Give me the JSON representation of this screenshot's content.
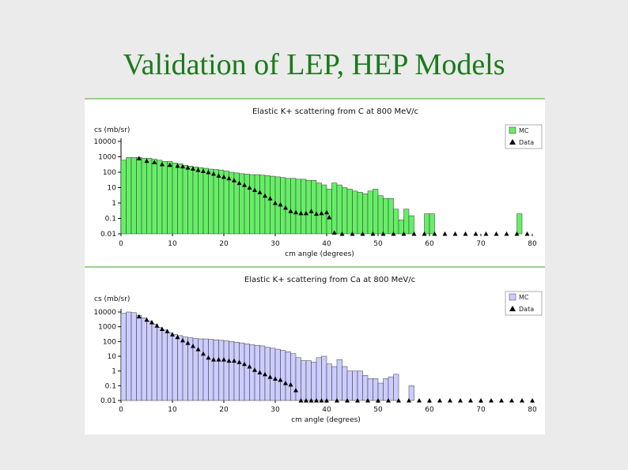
{
  "slide": {
    "title": "Validation of LEP, HEP Models"
  },
  "colors": {
    "title": "#1a7a1a",
    "mc_top": "#66ee66",
    "mc_bottom": "#ccccff",
    "data": "#000000"
  },
  "chart_data": [
    {
      "type": "bar",
      "title": "Elastic K+ scattering from C at 800 MeV/c",
      "xlabel": "cm angle (degrees)",
      "ylabel": "cs (mb/sr)",
      "xlim": [
        0,
        80
      ],
      "ylim": [
        0.01,
        10000
      ],
      "yscale": "log",
      "xticks": [
        "0",
        "10",
        "20",
        "30",
        "40",
        "50",
        "60",
        "70",
        "80"
      ],
      "yticks": [
        "0.01",
        "0.1",
        "1",
        "10",
        "100",
        "1000",
        "10000"
      ],
      "bin_width": 1,
      "legend": [
        "MC",
        "Data"
      ],
      "legend_position": "top-right",
      "series": [
        {
          "name": "MC",
          "kind": "histogram",
          "values": [
            600,
            900,
            900,
            900,
            800,
            800,
            700,
            600,
            500,
            500,
            400,
            350,
            280,
            250,
            220,
            200,
            180,
            160,
            150,
            140,
            120,
            100,
            90,
            80,
            75,
            70,
            70,
            65,
            60,
            55,
            50,
            45,
            40,
            40,
            35,
            35,
            30,
            30,
            20,
            15,
            8,
            20,
            15,
            10,
            8,
            6,
            5,
            4,
            6,
            8,
            3,
            2,
            2,
            0.4,
            0.08,
            0.4,
            0.15,
            0.01,
            0.01,
            0.2,
            0.2,
            0.01,
            0.01,
            0.01,
            0.01,
            0.01,
            0.01,
            0.01,
            0.01,
            0.01,
            0.01,
            0.01,
            0.01,
            0.01,
            0.01,
            0.01,
            0.01,
            0.2,
            0.01,
            0.01
          ]
        },
        {
          "name": "Data",
          "kind": "points",
          "x": [
            3.5,
            5,
            6.5,
            8,
            9.5,
            11,
            12,
            13,
            14,
            15,
            16,
            17,
            18,
            19,
            20,
            21,
            22,
            23,
            24,
            25,
            26,
            27,
            28,
            29,
            30,
            31,
            32,
            33,
            34,
            35,
            36,
            37,
            38,
            39,
            40,
            40.5,
            41.5,
            43,
            45,
            47,
            49,
            51,
            53,
            55,
            57,
            59,
            61,
            63,
            65,
            67,
            69,
            71,
            73,
            75,
            77,
            79
          ],
          "y": [
            800,
            550,
            450,
            330,
            300,
            260,
            240,
            200,
            170,
            140,
            120,
            100,
            80,
            60,
            50,
            40,
            30,
            20,
            15,
            10,
            7,
            5,
            3,
            2,
            1,
            0.8,
            0.5,
            0.3,
            0.25,
            0.22,
            0.22,
            0.3,
            0.2,
            0.22,
            0.25,
            0.12,
            0.012,
            0.01,
            0.01,
            0.01,
            0.01,
            0.01,
            0.01,
            0.01,
            0.01,
            0.01,
            0.01,
            0.01,
            0.01,
            0.01,
            0.01,
            0.01,
            0.01,
            0.01,
            0.01,
            0.01
          ]
        }
      ]
    },
    {
      "type": "bar",
      "title": "Elastic K+ scattering from Ca at 800 MeV/c",
      "xlabel": "cm angle (degrees)",
      "ylabel": "cs (mb/sr)",
      "xlim": [
        0,
        80
      ],
      "ylim": [
        0.01,
        10000
      ],
      "yscale": "log",
      "xticks": [
        "0",
        "10",
        "20",
        "30",
        "40",
        "50",
        "60",
        "70",
        "80"
      ],
      "yticks": [
        "0.01",
        "0.1",
        "1",
        "10",
        "100",
        "1000",
        "10000"
      ],
      "bin_width": 1,
      "legend": [
        "MC",
        "Data"
      ],
      "legend_position": "top-right",
      "series": [
        {
          "name": "MC",
          "kind": "histogram",
          "values": [
            8000,
            10000,
            9000,
            6000,
            4000,
            2500,
            1500,
            900,
            600,
            400,
            300,
            250,
            200,
            180,
            160,
            150,
            150,
            140,
            130,
            120,
            110,
            100,
            90,
            80,
            70,
            60,
            55,
            50,
            40,
            35,
            30,
            25,
            20,
            15,
            8,
            5,
            5,
            4,
            8,
            10,
            3,
            2,
            6,
            2,
            1,
            1,
            1,
            0.5,
            0.3,
            0.3,
            0.15,
            0.3,
            0.4,
            0.6,
            0.01,
            0.01,
            0.1,
            0.01,
            0.01,
            0.01,
            0.01,
            0.01,
            0.01,
            0.01,
            0.01,
            0.01,
            0.01,
            0.01,
            0.01,
            0.01,
            0.01,
            0.01,
            0.01,
            0.01,
            0.01,
            0.01,
            0.01,
            0.01,
            0.01,
            0.01
          ]
        },
        {
          "name": "Data",
          "kind": "points",
          "x": [
            3.5,
            5,
            6,
            7,
            8,
            9,
            10,
            11,
            12,
            13,
            14,
            15,
            16,
            17,
            18,
            19,
            20,
            21,
            22,
            23,
            24,
            25,
            26,
            27,
            28,
            29,
            30,
            31,
            32,
            33,
            34,
            35,
            36,
            37,
            38,
            39,
            40,
            42,
            44,
            46,
            48,
            50,
            52,
            54,
            56,
            58,
            60,
            62,
            64,
            66,
            68,
            70,
            72,
            74,
            76,
            78,
            80
          ],
          "y": [
            5000,
            3000,
            2000,
            1200,
            700,
            500,
            300,
            200,
            120,
            80,
            50,
            30,
            15,
            8,
            6,
            6,
            6,
            5,
            5,
            4,
            3,
            2,
            1.2,
            0.8,
            0.6,
            0.4,
            0.3,
            0.25,
            0.15,
            0.12,
            0.05,
            0.01,
            0.01,
            0.01,
            0.01,
            0.01,
            0.01,
            0.01,
            0.01,
            0.01,
            0.01,
            0.01,
            0.01,
            0.01,
            0.01,
            0.01,
            0.01,
            0.01,
            0.01,
            0.01,
            0.01,
            0.01,
            0.01,
            0.01,
            0.01,
            0.01,
            0.01
          ]
        }
      ]
    }
  ]
}
